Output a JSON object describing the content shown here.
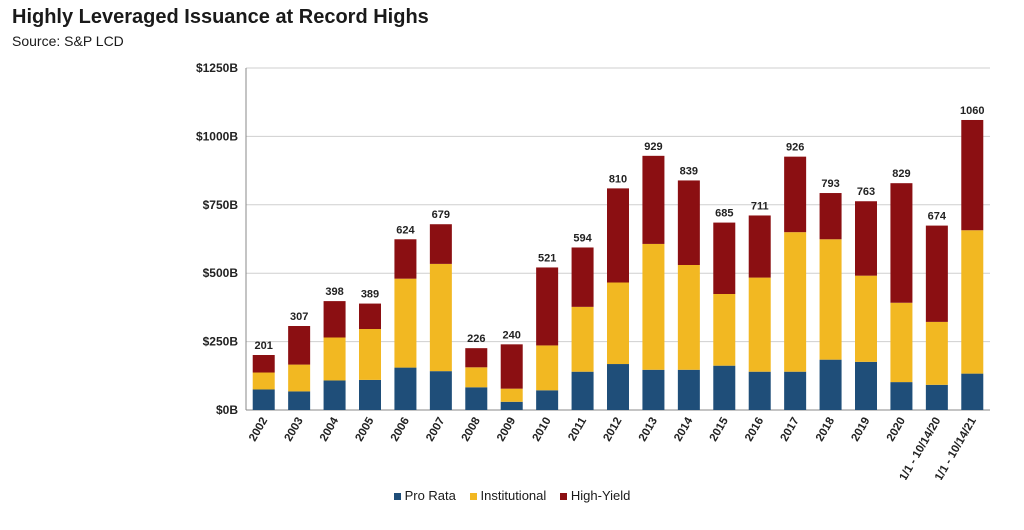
{
  "chart_data": {
    "type": "bar",
    "stacked": true,
    "title": "Highly Leveraged Issuance at Record Highs",
    "subtitle": "Source: S&P LCD",
    "categories": [
      "2002",
      "2003",
      "2004",
      "2005",
      "2006",
      "2007",
      "2008",
      "2009",
      "2010",
      "2011",
      "2012",
      "2013",
      "2014",
      "2015",
      "2016",
      "2017",
      "2018",
      "2019",
      "2020",
      "1/1 - 10/14/20",
      "1/1 - 10/14/21"
    ],
    "series": [
      {
        "name": "Pro Rata",
        "color": "#1f4e79",
        "values": [
          75,
          68,
          108,
          110,
          155,
          142,
          83,
          30,
          72,
          140,
          168,
          147,
          147,
          162,
          140,
          140,
          184,
          176,
          102,
          92,
          133
        ]
      },
      {
        "name": "Institutional",
        "color": "#f2b822",
        "values": [
          62,
          98,
          157,
          186,
          325,
          392,
          73,
          48,
          164,
          237,
          298,
          460,
          383,
          262,
          344,
          510,
          440,
          315,
          290,
          230,
          524
        ]
      },
      {
        "name": "High-Yield",
        "color": "#8b0f12",
        "values": [
          64,
          141,
          133,
          93,
          144,
          145,
          70,
          162,
          285,
          217,
          344,
          322,
          309,
          261,
          227,
          276,
          169,
          272,
          437,
          352,
          403
        ]
      }
    ],
    "totals": [
      "201",
      "307",
      "398",
      "389",
      "624",
      "679",
      "226",
      "240",
      "521",
      "594",
      "810",
      "929",
      "839",
      "685",
      "711",
      "926",
      "793",
      "763",
      "829",
      "674",
      "1060"
    ],
    "ylim": [
      0,
      1250
    ],
    "yticks": [
      0,
      250,
      500,
      750,
      1000,
      1250
    ],
    "ytick_labels": [
      "$0B",
      "$250B",
      "$500B",
      "$750B",
      "$1000B",
      "$1250B"
    ],
    "grid": true,
    "legend_position": "bottom"
  }
}
